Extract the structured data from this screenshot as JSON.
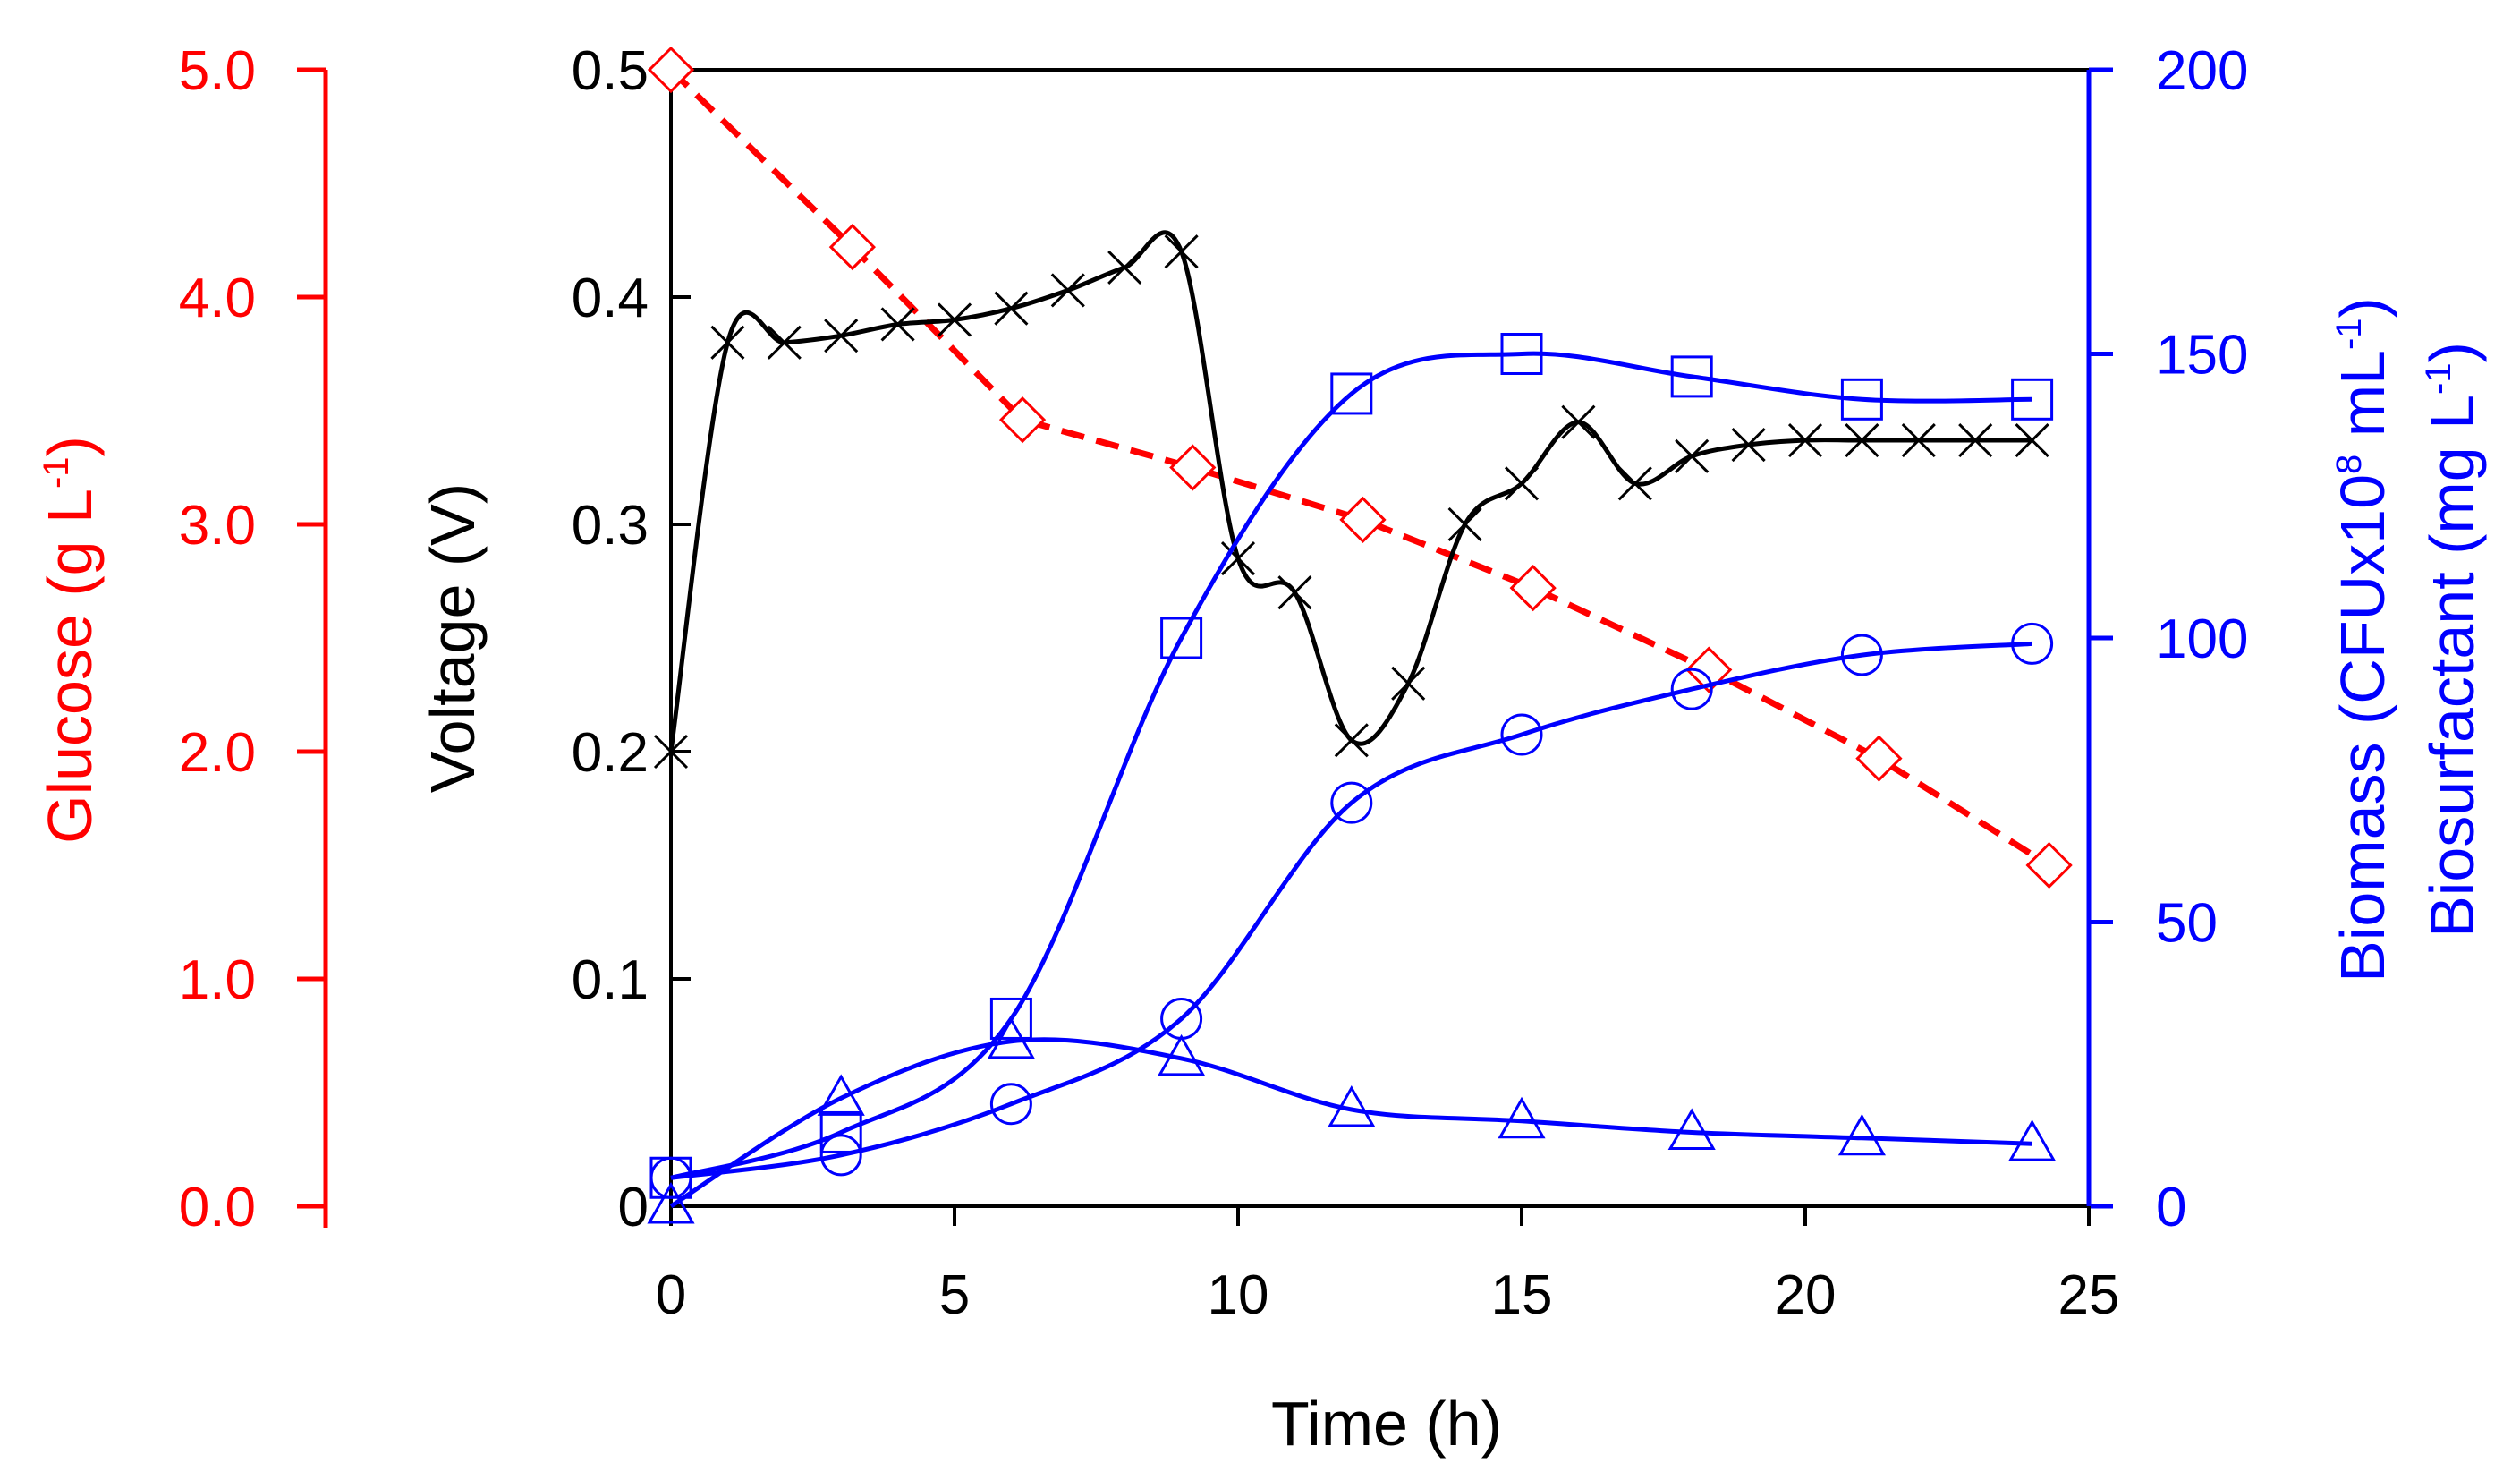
{
  "chart_data": {
    "type": "line",
    "x_axis": {
      "label": "Time (h)",
      "range": [
        0,
        25
      ],
      "ticks": [
        "0",
        "5",
        "10",
        "15",
        "20",
        "25"
      ]
    },
    "left_axis_glucose": {
      "label_main": "Glucose (g L",
      "label_sup": "-1",
      "label_end": ")",
      "range": [
        0,
        5
      ],
      "ticks": [
        "0.0",
        "1.0",
        "2.0",
        "3.0",
        "4.0",
        "5.0"
      ]
    },
    "left_axis_voltage": {
      "label": "Voltage (V)",
      "range": [
        0,
        0.5
      ],
      "ticks": [
        "0",
        "0.1",
        "0.2",
        "0.3",
        "0.4",
        "0.5"
      ]
    },
    "right_axis": {
      "label_biomass_main": "Biomass (CFUx10",
      "label_biomass_sup1": "8",
      "label_biomass_mid": " mL",
      "label_biomass_sup2": "-1",
      "label_biomass_end": ")",
      "label_biosurf_main": "Biosurfactant  (mg L",
      "label_biosurf_sup": "-1",
      "label_biosurf_end": ")",
      "range": [
        0,
        200
      ],
      "ticks": [
        "0",
        "50",
        "100",
        "150",
        "200"
      ]
    },
    "series": [
      {
        "name": "Glucose",
        "axis": "glucose",
        "marker": "diamond",
        "color": "#ff0000",
        "line": "dashed",
        "x": [
          0,
          3.2,
          6.2,
          9.2,
          12.2,
          15.2,
          18.3,
          21.3,
          24.3
        ],
        "y": [
          5.0,
          4.22,
          3.46,
          3.25,
          3.02,
          2.72,
          2.36,
          1.97,
          1.5
        ]
      },
      {
        "name": "Voltage",
        "axis": "voltage",
        "marker": "cross",
        "color": "#000000",
        "line": "solid",
        "x": [
          0,
          1,
          2,
          3,
          4,
          5,
          6,
          7,
          8,
          9,
          10,
          11,
          12,
          13,
          14,
          15,
          16,
          17,
          18,
          19,
          20,
          21,
          22,
          23,
          24
        ],
        "y": [
          0.2,
          0.38,
          0.38,
          0.383,
          0.388,
          0.39,
          0.395,
          0.403,
          0.413,
          0.42,
          0.285,
          0.27,
          0.205,
          0.23,
          0.3,
          0.318,
          0.345,
          0.318,
          0.33,
          0.335,
          0.337,
          0.337,
          0.337,
          0.337,
          0.337
        ]
      },
      {
        "name": "Biomass (squares)",
        "axis": "right",
        "marker": "square",
        "color": "#0000ff",
        "line": "solid",
        "x": [
          0,
          3,
          6,
          9,
          12,
          15,
          18,
          21,
          24
        ],
        "y": [
          5,
          13,
          33,
          100,
          143,
          150,
          146,
          142,
          142
        ]
      },
      {
        "name": "Biosurfactant (circles)",
        "axis": "right",
        "marker": "circle",
        "color": "#0000ff",
        "line": "solid",
        "x": [
          0,
          3,
          6,
          9,
          12,
          15,
          18,
          21,
          24
        ],
        "y": [
          5,
          9,
          18,
          33,
          71,
          83,
          91,
          97,
          99
        ]
      },
      {
        "name": "Triangles",
        "axis": "right",
        "marker": "triangle",
        "color": "#0000ff",
        "line": "solid",
        "x": [
          0,
          3,
          6,
          9,
          12,
          15,
          18,
          21,
          24
        ],
        "y": [
          0,
          19,
          29,
          26,
          17,
          15,
          13,
          12,
          11
        ]
      }
    ],
    "grid": false,
    "legend": "none"
  }
}
